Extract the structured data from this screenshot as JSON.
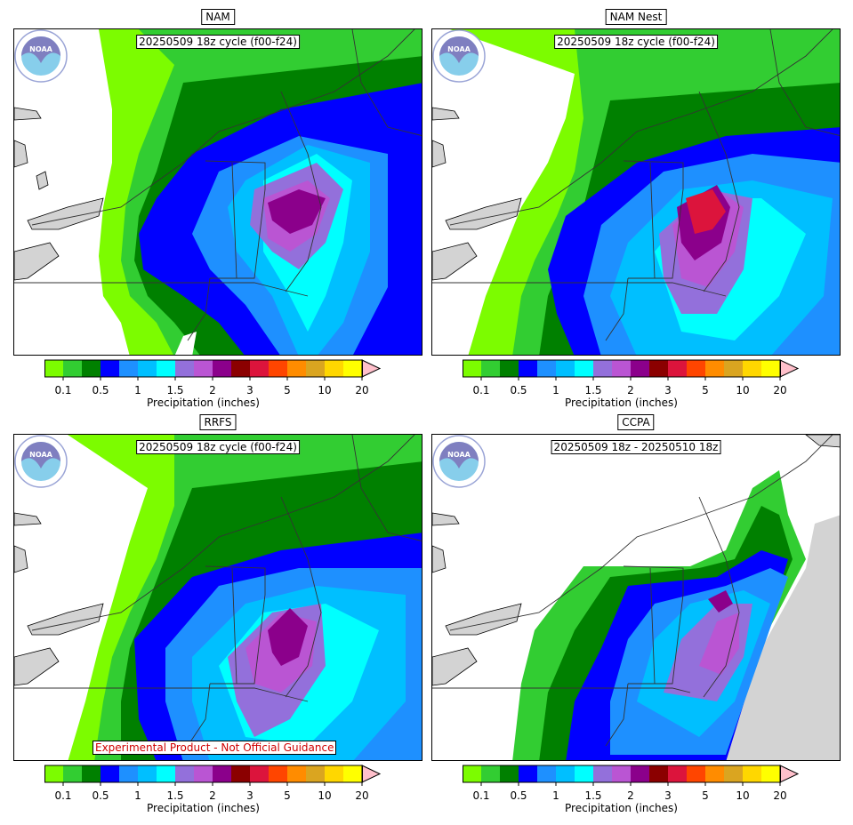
{
  "panels": [
    {
      "title": "NAM",
      "cycle": "20250509 18z cycle (f00-f24)",
      "footnote": ""
    },
    {
      "title": "NAM Nest",
      "cycle": "20250509 18z cycle (f00-f24)",
      "footnote": ""
    },
    {
      "title": "RRFS",
      "cycle": "20250509 18z cycle (f00-f24)",
      "footnote": "Experimental Product - Not Official Guidance"
    },
    {
      "title": "CCPA",
      "cycle": "20250509 18z - 20250510 18z",
      "footnote": ""
    }
  ],
  "colorbar": {
    "label": "Precipitation (inches)",
    "ticks": [
      "0.1",
      "0.5",
      "1",
      "1.5",
      "2",
      "3",
      "5",
      "10",
      "20"
    ],
    "colors": [
      "#7cfc00",
      "#32cd32",
      "#008000",
      "#0000ff",
      "#1e90ff",
      "#00bfff",
      "#00ffff",
      "#9370db",
      "#ba55d3",
      "#8b008b",
      "#8b0000",
      "#dc143c",
      "#ff4500",
      "#ff8c00",
      "#daa520",
      "#ffd700",
      "#ffff00"
    ],
    "extend_color": "#ffc0cb"
  },
  "colors": {
    "land_masked": "#d3d3d3",
    "border": "#000000",
    "footnote_text": "#d00000"
  },
  "logo": {
    "icon": "noaa-logo-icon",
    "text": "NOAA"
  }
}
